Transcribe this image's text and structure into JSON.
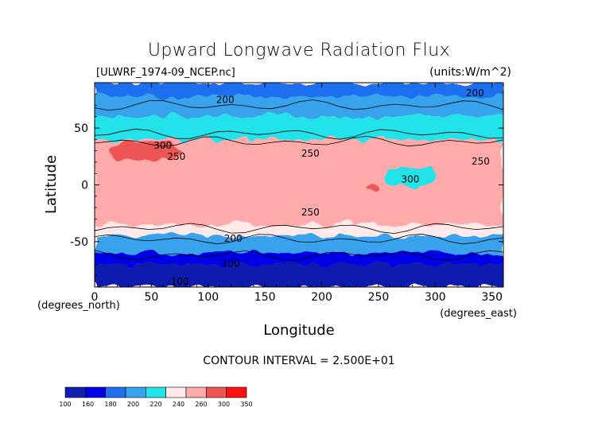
{
  "chart_data": {
    "type": "heatmap",
    "title": "Upward Longwave Radiation Flux",
    "file_label": "[ULWRF_1974-09_NCEP.nc]",
    "units_label": "(units:W/m^2)",
    "xlabel": "Longitude",
    "ylabel": "Latitude",
    "x_unit_label": "(degrees_east)",
    "y_unit_label": "(degrees_north)",
    "xlim": [
      0,
      360
    ],
    "ylim": [
      -90,
      90
    ],
    "x_ticks": [
      0,
      50,
      100,
      150,
      200,
      250,
      300,
      350
    ],
    "y_ticks": [
      -50,
      0,
      50
    ],
    "contour_interval_label": "CONTOUR INTERVAL = 2.500E+01",
    "contour_labels": [
      {
        "text": "200",
        "lon": 115,
        "lat": 72
      },
      {
        "text": "200",
        "lon": 335,
        "lat": 78
      },
      {
        "text": "300",
        "lon": 60,
        "lat": 32
      },
      {
        "text": "250",
        "lon": 72,
        "lat": 22
      },
      {
        "text": "250",
        "lon": 190,
        "lat": 25
      },
      {
        "text": "250",
        "lon": 340,
        "lat": 18
      },
      {
        "text": "300",
        "lon": 278,
        "lat": 2
      },
      {
        "text": "250",
        "lon": 190,
        "lat": -27
      },
      {
        "text": "200",
        "lon": 122,
        "lat": -50
      },
      {
        "text": "100",
        "lon": 120,
        "lat": -72
      },
      {
        "text": "100",
        "lon": 75,
        "lat": -88
      }
    ],
    "colorbar": {
      "levels": [
        100,
        160,
        180,
        200,
        220,
        240,
        260,
        300,
        350
      ],
      "colors": [
        "#0f1fae",
        "#0000e6",
        "#1f6ff0",
        "#37a3ec",
        "#22e2ea",
        "#ffe9e9",
        "#ffaaaa",
        "#ee5555",
        "#ff1010"
      ]
    },
    "regions": [
      {
        "lat": [
          60,
          90
        ],
        "lon": [
          0,
          360
        ],
        "value": 210
      },
      {
        "lat": [
          78,
          90
        ],
        "lon": [
          0,
          360
        ],
        "value": 190
      },
      {
        "lat": [
          40,
          60
        ],
        "lon": [
          0,
          360
        ],
        "value": 230
      },
      {
        "lat": [
          -40,
          40
        ],
        "lon": [
          0,
          360
        ],
        "value": 270
      },
      {
        "lat": [
          -15,
          30
        ],
        "lon": [
          15,
          95
        ],
        "value": 285
      },
      {
        "lat": [
          22,
          38
        ],
        "lon": [
          15,
          75
        ],
        "value": 310
      },
      {
        "lat": [
          -18,
          -8
        ],
        "lon": [
          20,
          45
        ],
        "value": 295
      },
      {
        "lat": [
          -35,
          30
        ],
        "lon": [
          205,
          305
        ],
        "value": 285
      },
      {
        "lat": [
          -3,
          3
        ],
        "lon": [
          240,
          250
        ],
        "value": 305
      },
      {
        "lat": [
          0,
          15
        ],
        "lon": [
          255,
          300
        ],
        "value": 230
      },
      {
        "lat": [
          -45,
          -35
        ],
        "lon": [
          0,
          360
        ],
        "value": 240
      },
      {
        "lat": [
          -60,
          -45
        ],
        "lon": [
          0,
          360
        ],
        "value": 205
      },
      {
        "lat": [
          -70,
          -60
        ],
        "lon": [
          0,
          360
        ],
        "value": 170
      },
      {
        "lat": [
          -90,
          -70
        ],
        "lon": [
          0,
          360
        ],
        "value": 140
      }
    ]
  }
}
